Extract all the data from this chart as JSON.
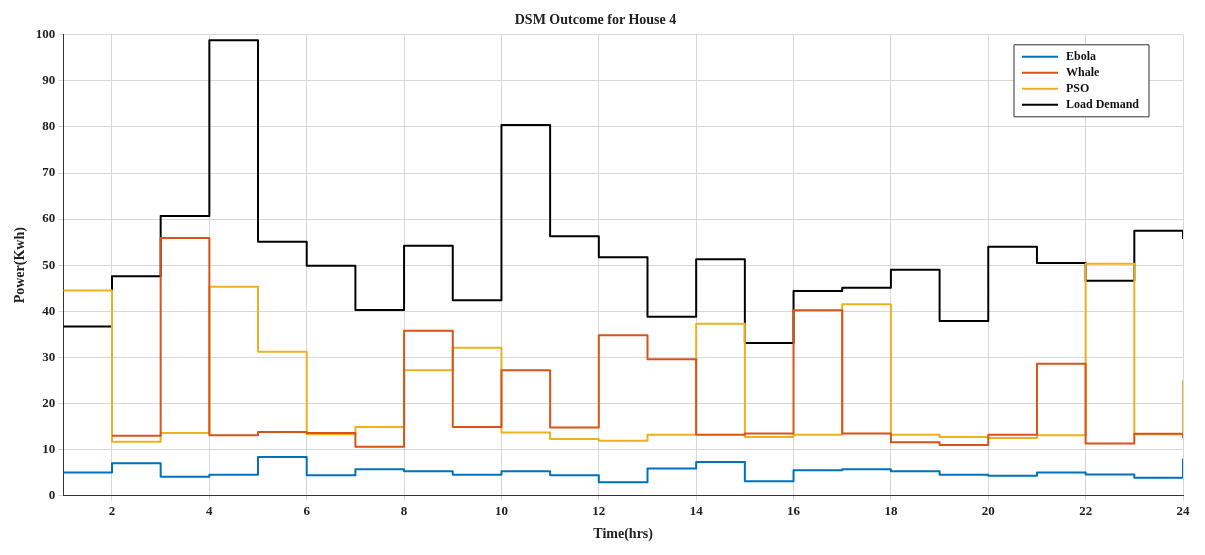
{
  "chart_data": {
    "type": "step",
    "title": "DSM Outcome for House 4",
    "xlabel": "Time(hrs)",
    "ylabel": "Power(Kwh)",
    "x": [
      1,
      2,
      3,
      4,
      5,
      6,
      7,
      8,
      9,
      10,
      11,
      12,
      13,
      14,
      15,
      16,
      17,
      18,
      19,
      20,
      21,
      22,
      23,
      24
    ],
    "series": [
      {
        "name": "Ebola",
        "color": "#0072bd",
        "values": [
          5,
          7,
          4.1,
          4.5,
          8.4,
          4.4,
          5.7,
          5.3,
          4.5,
          5.3,
          4.4,
          2.9,
          5.9,
          7.3,
          3.1,
          5.5,
          5.7,
          5.3,
          4.5,
          4.3,
          5,
          4.6,
          3.9,
          8
        ]
      },
      {
        "name": "Whale",
        "color": "#d95319",
        "values": [
          null,
          13,
          55.9,
          13.1,
          13.8,
          13.6,
          10.6,
          35.8,
          14.9,
          27.2,
          14.8,
          34.8,
          29.6,
          13.2,
          13.5,
          40.2,
          13.5,
          11.6,
          11,
          13.2,
          28.6,
          11.3,
          13.4,
          12.5
        ]
      },
      {
        "name": "PSO",
        "color": "#edb120",
        "values": [
          44.5,
          11.7,
          13.6,
          45.3,
          31.2,
          13.3,
          14.9,
          27.2,
          32.1,
          13.7,
          12.3,
          11.9,
          13.2,
          37.3,
          12.7,
          13.2,
          41.5,
          13.2,
          12.7,
          12.5,
          13.1,
          50.3,
          13.3,
          25
        ]
      },
      {
        "name": "Load Demand",
        "color": "#000000",
        "values": [
          36.7,
          47.6,
          60.7,
          98.8,
          55.1,
          49.9,
          40.3,
          54.2,
          42.4,
          80.4,
          56.3,
          51.7,
          38.8,
          51.3,
          33.1,
          44.4,
          45.1,
          49,
          37.9,
          54,
          50.5,
          46.6,
          57.5,
          55.7
        ]
      }
    ],
    "xlim": [
      1,
      24
    ],
    "xticks": [
      2,
      4,
      6,
      8,
      10,
      12,
      14,
      16,
      18,
      20,
      22,
      24
    ],
    "ylim": [
      0,
      100
    ],
    "yticks": [
      0,
      10,
      20,
      30,
      40,
      50,
      60,
      70,
      80,
      90,
      100
    ],
    "grid": true,
    "legend": "top right"
  }
}
